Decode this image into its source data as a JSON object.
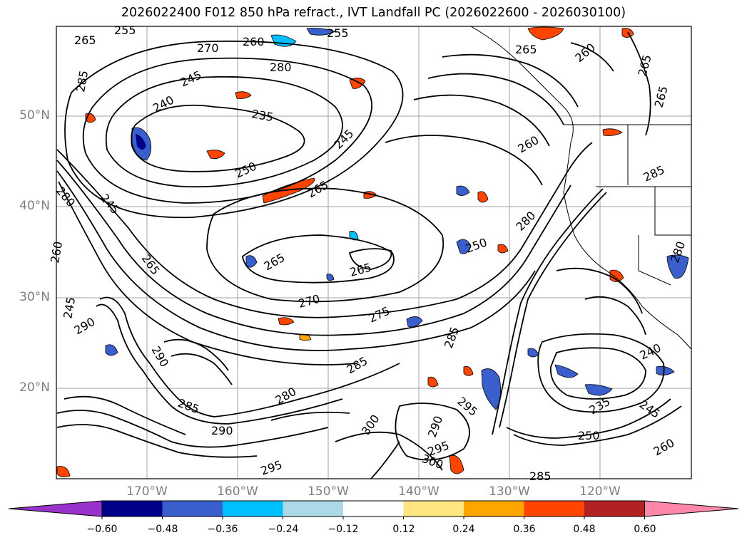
{
  "title": "2026022400 F012 850 hPa refract., IVT Landfall PC (2026022600 - 2026030100)",
  "latitude_labels": [
    "50°N",
    "40°N",
    "30°N",
    "20°N"
  ],
  "longitude_labels": [
    "170°W",
    "160°W",
    "150°W",
    "140°W",
    "130°W",
    "120°W"
  ],
  "colorbar": {
    "ticks": [
      "−0.60",
      "−0.48",
      "−0.36",
      "−0.24",
      "−0.12",
      "0.12",
      "0.24",
      "0.36",
      "0.48",
      "0.60"
    ],
    "colors": [
      "#9932cc",
      "#00008b",
      "#3a5fcd",
      "#00bfff",
      "#add8e6",
      "#ffffff",
      "#ffe680",
      "#ffa500",
      "#ff4500",
      "#b22222",
      "#ff88aa"
    ]
  },
  "contour_labels": [
    "265",
    "270",
    "260",
    "255",
    "255",
    "265",
    "260",
    "265",
    "285",
    "280",
    "245",
    "240",
    "235",
    "245",
    "250",
    "265",
    "260",
    "265",
    "285",
    "280",
    "245",
    "260",
    "265",
    "265",
    "265",
    "270",
    "275",
    "285",
    "280",
    "290",
    "245",
    "250",
    "290",
    "285",
    "285",
    "280",
    "290",
    "295",
    "300",
    "295",
    "295",
    "290",
    "300",
    "285",
    "240",
    "235",
    "245",
    "250",
    "260",
    "280"
  ],
  "colors": {
    "contour": "#000000",
    "coast": "#000000",
    "grid": "#a0a0a0",
    "axis_label": "#7f7f7f"
  }
}
